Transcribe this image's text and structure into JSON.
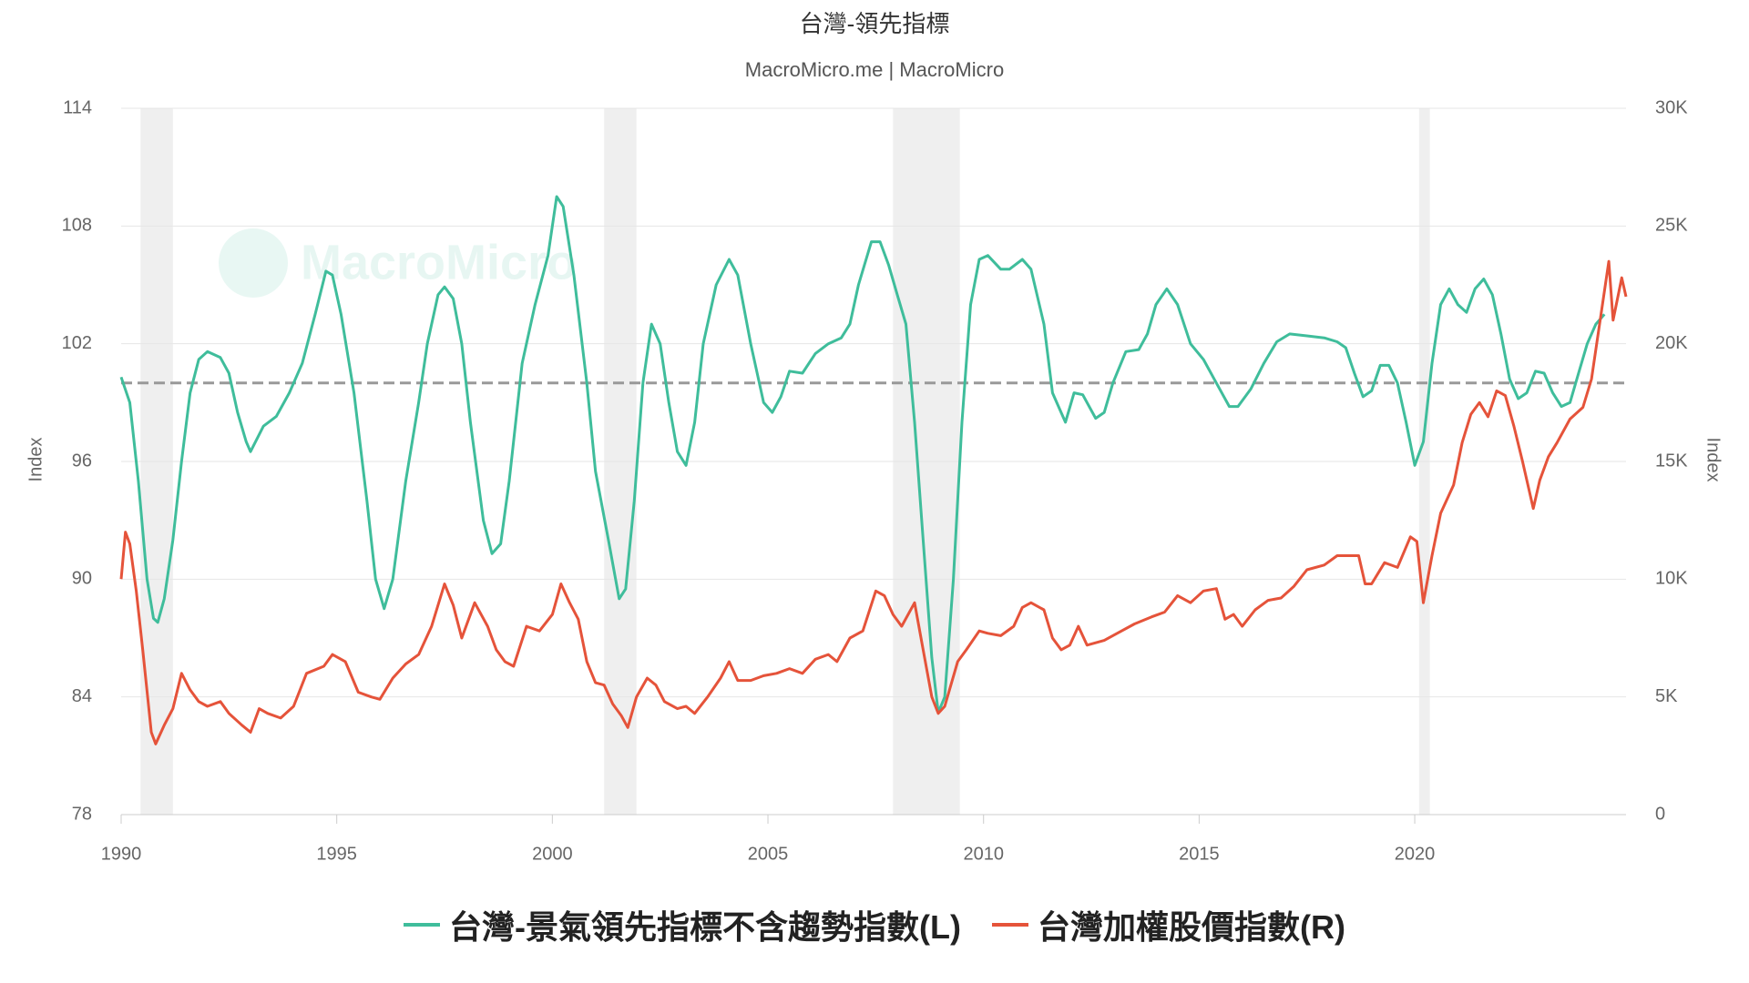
{
  "chart_data": {
    "type": "line",
    "title": "台灣-領先指標",
    "subtitle": "MacroMicro.me | MacroMicro",
    "watermark": "MacroMicro",
    "ylabel": "Index",
    "y2label": "Index",
    "xlim": [
      1990,
      2024.9
    ],
    "xticks": [
      1990,
      1995,
      2000,
      2005,
      2010,
      2015,
      2020
    ],
    "ylim": [
      78,
      114
    ],
    "yticks": [
      78,
      84,
      90,
      96,
      102,
      108,
      114
    ],
    "y2lim": [
      0,
      30000
    ],
    "y2ticks": [
      0,
      {
        "value": 5000,
        "label": "5K"
      },
      {
        "value": 10000,
        "label": "10K"
      },
      {
        "value": 15000,
        "label": "15K"
      },
      {
        "value": 20000,
        "label": "20K"
      },
      {
        "value": 25000,
        "label": "25K"
      },
      {
        "value": 30000,
        "label": "30K"
      }
    ],
    "grid": true,
    "reference_line": 100,
    "shaded_periods": [
      [
        1990.45,
        1991.2
      ],
      [
        2001.2,
        2001.95
      ],
      [
        2007.9,
        2009.45
      ],
      [
        2020.1,
        2020.35
      ]
    ],
    "series": [
      {
        "name": "台灣-景氣領先指標不含趨勢指數(L)",
        "color": "#3fbd9b",
        "axis": "y",
        "x": [
          1990.0,
          1990.2,
          1990.4,
          1990.6,
          1990.75,
          1990.85,
          1991.0,
          1991.2,
          1991.4,
          1991.6,
          1991.8,
          1992.0,
          1992.3,
          1992.5,
          1992.7,
          1992.9,
          1993.0,
          1993.3,
          1993.6,
          1993.9,
          1994.2,
          1994.5,
          1994.75,
          1994.9,
          1995.1,
          1995.4,
          1995.7,
          1995.9,
          1996.1,
          1996.3,
          1996.6,
          1996.9,
          1997.1,
          1997.35,
          1997.5,
          1997.7,
          1997.9,
          1998.1,
          1998.4,
          1998.6,
          1998.8,
          1999.0,
          1999.3,
          1999.6,
          1999.9,
          2000.1,
          2000.25,
          2000.5,
          2000.8,
          2001.0,
          2001.3,
          2001.55,
          2001.7,
          2001.9,
          2002.1,
          2002.3,
          2002.5,
          2002.7,
          2002.9,
          2003.1,
          2003.3,
          2003.5,
          2003.8,
          2004.1,
          2004.3,
          2004.6,
          2004.9,
          2005.1,
          2005.3,
          2005.5,
          2005.8,
          2006.1,
          2006.4,
          2006.7,
          2006.9,
          2007.1,
          2007.4,
          2007.6,
          2007.8,
          2008.0,
          2008.2,
          2008.4,
          2008.6,
          2008.8,
          2008.95,
          2009.1,
          2009.3,
          2009.5,
          2009.7,
          2009.9,
          2010.1,
          2010.4,
          2010.6,
          2010.9,
          2011.1,
          2011.4,
          2011.6,
          2011.9,
          2012.1,
          2012.3,
          2012.6,
          2012.8,
          2013.0,
          2013.3,
          2013.6,
          2013.8,
          2014.0,
          2014.25,
          2014.5,
          2014.8,
          2015.1,
          2015.4,
          2015.7,
          2015.9,
          2016.2,
          2016.5,
          2016.8,
          2017.1,
          2017.5,
          2017.9,
          2018.2,
          2018.4,
          2018.6,
          2018.8,
          2019.0,
          2019.2,
          2019.4,
          2019.6,
          2019.8,
          2020.0,
          2020.2,
          2020.4,
          2020.6,
          2020.8,
          2021.0,
          2021.2,
          2021.4,
          2021.6,
          2021.8,
          2022.0,
          2022.2,
          2022.4,
          2022.6,
          2022.8,
          2023.0,
          2023.2,
          2023.4,
          2023.6,
          2023.8,
          2024.0,
          2024.2,
          2024.4
        ],
        "values": [
          100.3,
          99,
          95,
          90,
          88,
          87.8,
          89,
          92,
          96,
          99.5,
          101.2,
          101.6,
          101.3,
          100.5,
          98.5,
          97,
          96.5,
          97.8,
          98.3,
          99.5,
          101,
          103.5,
          105.7,
          105.5,
          103.5,
          99.5,
          94,
          90,
          88.5,
          90,
          95,
          99,
          102,
          104.5,
          104.9,
          104.3,
          102,
          98,
          93,
          91.3,
          91.8,
          95,
          101,
          104,
          106.5,
          109.5,
          109,
          105.5,
          100,
          95.5,
          92,
          89,
          89.5,
          94,
          100,
          103,
          102,
          99,
          96.5,
          95.8,
          98,
          102,
          105,
          106.3,
          105.5,
          102,
          99,
          98.5,
          99.3,
          100.6,
          100.5,
          101.5,
          102,
          102.3,
          103,
          105,
          107.2,
          107.2,
          106,
          104.5,
          103,
          98,
          92,
          86,
          83.2,
          84,
          90,
          98,
          104,
          106.3,
          106.5,
          105.8,
          105.8,
          106.3,
          105.8,
          103,
          99.5,
          98,
          99.5,
          99.4,
          98.2,
          98.5,
          100,
          101.6,
          101.7,
          102.5,
          104,
          104.8,
          104,
          102,
          101.2,
          100,
          98.8,
          98.8,
          99.7,
          101,
          102.1,
          102.5,
          102.4,
          102.3,
          102.1,
          101.8,
          100.5,
          99.3,
          99.6,
          100.9,
          100.9,
          100,
          98,
          95.8,
          97,
          101,
          104,
          104.8,
          104,
          103.6,
          104.8,
          105.3,
          104.5,
          102.5,
          100.2,
          99.2,
          99.5,
          100.6,
          100.5,
          99.5,
          98.8,
          99,
          100.5,
          102,
          103,
          103.5
        ]
      },
      {
        "name": "台灣加權股價指數(R)",
        "color": "#e5533a",
        "axis": "y2",
        "x": [
          1990.0,
          1990.1,
          1990.2,
          1990.35,
          1990.5,
          1990.7,
          1990.8,
          1991.0,
          1991.2,
          1991.4,
          1991.6,
          1991.8,
          1992.0,
          1992.3,
          1992.5,
          1992.8,
          1993.0,
          1993.2,
          1993.4,
          1993.7,
          1994.0,
          1994.3,
          1994.7,
          1994.9,
          1995.2,
          1995.5,
          1995.8,
          1996.0,
          1996.3,
          1996.6,
          1996.9,
          1997.2,
          1997.5,
          1997.7,
          1997.9,
          1998.2,
          1998.5,
          1998.7,
          1998.9,
          1999.1,
          1999.4,
          1999.7,
          2000.0,
          2000.2,
          2000.4,
          2000.6,
          2000.8,
          2001.0,
          2001.2,
          2001.4,
          2001.6,
          2001.75,
          2001.95,
          2002.2,
          2002.4,
          2002.6,
          2002.9,
          2003.1,
          2003.3,
          2003.6,
          2003.9,
          2004.1,
          2004.3,
          2004.6,
          2004.9,
          2005.2,
          2005.5,
          2005.8,
          2006.1,
          2006.4,
          2006.6,
          2006.9,
          2007.2,
          2007.5,
          2007.7,
          2007.9,
          2008.1,
          2008.4,
          2008.6,
          2008.8,
          2008.95,
          2009.1,
          2009.4,
          2009.6,
          2009.9,
          2010.1,
          2010.4,
          2010.7,
          2010.9,
          2011.1,
          2011.4,
          2011.6,
          2011.8,
          2012.0,
          2012.2,
          2012.4,
          2012.6,
          2012.8,
          2013.1,
          2013.5,
          2013.9,
          2014.2,
          2014.5,
          2014.8,
          2015.1,
          2015.4,
          2015.6,
          2015.8,
          2016.0,
          2016.3,
          2016.6,
          2016.9,
          2017.2,
          2017.5,
          2017.9,
          2018.2,
          2018.5,
          2018.7,
          2018.85,
          2019.0,
          2019.3,
          2019.6,
          2019.9,
          2020.05,
          2020.2,
          2020.4,
          2020.6,
          2020.9,
          2021.1,
          2021.3,
          2021.5,
          2021.7,
          2021.9,
          2022.1,
          2022.3,
          2022.5,
          2022.75,
          2022.9,
          2023.1,
          2023.3,
          2023.6,
          2023.9,
          2024.1,
          2024.3,
          2024.5,
          2024.6,
          2024.8,
          2024.9
        ],
        "values": [
          10000,
          12000,
          11500,
          9500,
          7000,
          3500,
          3000,
          3800,
          4500,
          6000,
          5300,
          4800,
          4600,
          4800,
          4300,
          3800,
          3500,
          4500,
          4300,
          4100,
          4600,
          6000,
          6300,
          6800,
          6500,
          5200,
          5000,
          4900,
          5800,
          6400,
          6800,
          8000,
          9800,
          8900,
          7500,
          9000,
          8000,
          7000,
          6500,
          6300,
          8000,
          7800,
          8500,
          9800,
          9000,
          8300,
          6500,
          5600,
          5500,
          4700,
          4200,
          3700,
          5000,
          5800,
          5500,
          4800,
          4500,
          4600,
          4300,
          5000,
          5800,
          6500,
          5700,
          5700,
          5900,
          6000,
          6200,
          6000,
          6600,
          6800,
          6500,
          7500,
          7800,
          9500,
          9300,
          8500,
          8000,
          9000,
          7000,
          5000,
          4300,
          4600,
          6500,
          7000,
          7800,
          7700,
          7600,
          8000,
          8800,
          9000,
          8700,
          7500,
          7000,
          7200,
          8000,
          7200,
          7300,
          7400,
          7700,
          8100,
          8400,
          8600,
          9300,
          9000,
          9500,
          9600,
          8300,
          8500,
          8000,
          8700,
          9100,
          9200,
          9700,
          10400,
          10600,
          11000,
          11000,
          11000,
          9800,
          9800,
          10700,
          10500,
          11800,
          11600,
          9000,
          11000,
          12800,
          14000,
          15800,
          17000,
          17500,
          16900,
          18000,
          17800,
          16500,
          15000,
          13000,
          14200,
          15200,
          15800,
          16800,
          17300,
          18500,
          21000,
          23500,
          21000,
          22800,
          22000
        ]
      }
    ]
  }
}
